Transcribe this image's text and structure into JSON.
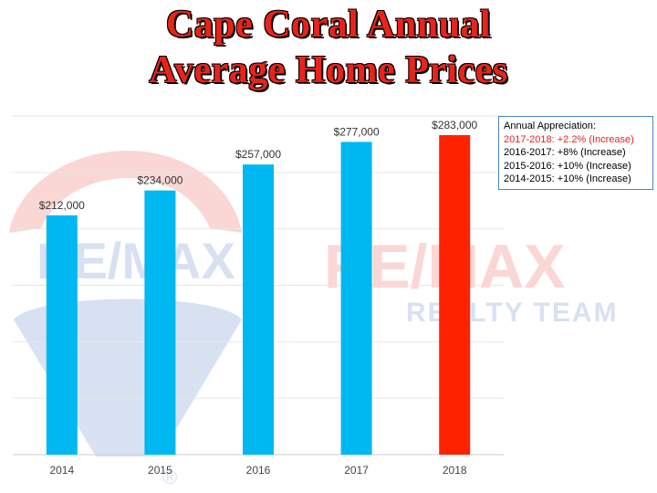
{
  "title": {
    "line1": "Cape Coral Annual",
    "line2": "Average Home Prices"
  },
  "watermark": {
    "left_text": "RE/MAX",
    "right_text": "RE/MAX",
    "right_subtext": "REALTY TEAM",
    "registered": "®"
  },
  "legend_box": {
    "heading": "Annual Appreciation:",
    "items": [
      "2017-2018: +2.2% (Increase)",
      "2016-2017: +8% (Increase)",
      "2015-2016: +10% (Increase)",
      "2014-2015: +10% (Increase)"
    ],
    "highlight_color": "#e8231b"
  },
  "chart_data": {
    "type": "bar",
    "categories": [
      "2014",
      "2015",
      "2016",
      "2017",
      "2018"
    ],
    "values": [
      212000,
      234000,
      257000,
      277000,
      283000
    ],
    "value_labels": [
      "$212,000",
      "$234,000",
      "$257,000",
      "$277,000",
      "$283,000"
    ],
    "bar_colors": [
      "#00b8f1",
      "#00b8f1",
      "#00b8f1",
      "#00b8f1",
      "#ff2200"
    ],
    "ylim": [
      0,
      300000
    ],
    "grid": true,
    "xlabel": "",
    "ylabel": ""
  }
}
